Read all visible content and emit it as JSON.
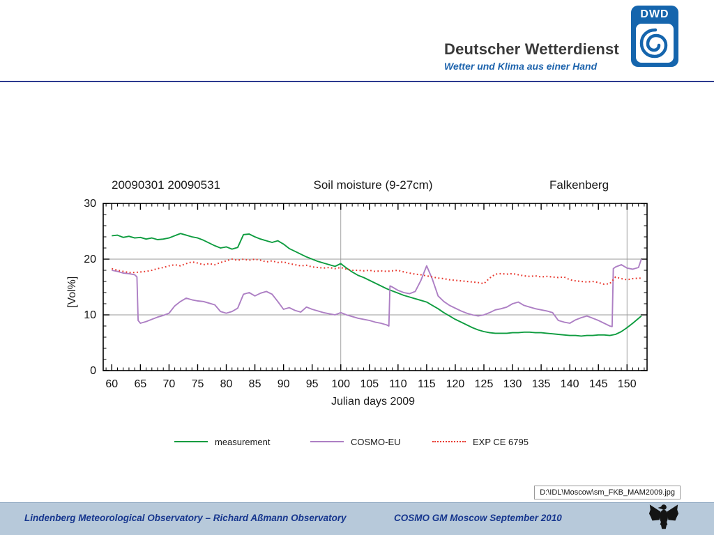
{
  "header": {
    "brand": "Deutscher Wetterdienst",
    "tagline": "Wetter und Klima aus einer Hand",
    "logo_text": "DWD",
    "logo_color": "#1565ad",
    "rule_color": "#2b3a8f"
  },
  "chart_data": {
    "type": "line",
    "title_left": "20090301 20090531",
    "title_center": "Soil moisture (9-27cm)",
    "title_right": "Falkenberg",
    "ylabel": "[Vol%]",
    "xlabel": "Julian days 2009",
    "xlim": [
      58.5,
      153.5
    ],
    "ylim": [
      0,
      30
    ],
    "xticks": [
      60,
      65,
      70,
      75,
      80,
      85,
      90,
      95,
      100,
      105,
      110,
      115,
      120,
      125,
      130,
      135,
      140,
      145,
      150
    ],
    "yticks": [
      0,
      10,
      20,
      30
    ],
    "x_minor_step": 1,
    "y_minor_step": 2,
    "grid": {
      "x": [
        100,
        150
      ],
      "y": [
        10,
        20
      ],
      "color": "#9a9a9a"
    },
    "legend_position": "bottom",
    "series": [
      {
        "name": "measurement",
        "color": "#0e9c3f",
        "style": "solid",
        "points": [
          [
            60,
            24.2
          ],
          [
            61,
            24.3
          ],
          [
            62,
            23.9
          ],
          [
            63,
            24.1
          ],
          [
            64,
            23.8
          ],
          [
            65,
            23.9
          ],
          [
            66,
            23.6
          ],
          [
            67,
            23.8
          ],
          [
            68,
            23.5
          ],
          [
            69,
            23.6
          ],
          [
            70,
            23.8
          ],
          [
            71,
            24.2
          ],
          [
            72,
            24.6
          ],
          [
            73,
            24.3
          ],
          [
            74,
            24.0
          ],
          [
            75,
            23.8
          ],
          [
            76,
            23.4
          ],
          [
            77,
            22.9
          ],
          [
            78,
            22.4
          ],
          [
            79,
            22.0
          ],
          [
            80,
            22.2
          ],
          [
            81,
            21.8
          ],
          [
            82,
            22.1
          ],
          [
            83,
            24.4
          ],
          [
            84,
            24.5
          ],
          [
            85,
            24.0
          ],
          [
            86,
            23.6
          ],
          [
            87,
            23.3
          ],
          [
            88,
            23.0
          ],
          [
            89,
            23.3
          ],
          [
            90,
            22.7
          ],
          [
            91,
            21.9
          ],
          [
            92,
            21.4
          ],
          [
            93,
            20.9
          ],
          [
            94,
            20.4
          ],
          [
            95,
            20.0
          ],
          [
            96,
            19.6
          ],
          [
            97,
            19.3
          ],
          [
            98,
            19.0
          ],
          [
            99,
            18.7
          ],
          [
            100,
            19.2
          ],
          [
            101,
            18.4
          ],
          [
            102,
            17.7
          ],
          [
            103,
            17.1
          ],
          [
            104,
            16.7
          ],
          [
            105,
            16.2
          ],
          [
            106,
            15.7
          ],
          [
            107,
            15.2
          ],
          [
            108,
            14.7
          ],
          [
            109,
            14.3
          ],
          [
            110,
            13.9
          ],
          [
            111,
            13.5
          ],
          [
            112,
            13.2
          ],
          [
            113,
            12.9
          ],
          [
            114,
            12.6
          ],
          [
            115,
            12.3
          ],
          [
            116,
            11.7
          ],
          [
            117,
            11.1
          ],
          [
            118,
            10.4
          ],
          [
            119,
            9.8
          ],
          [
            120,
            9.2
          ],
          [
            121,
            8.7
          ],
          [
            122,
            8.2
          ],
          [
            123,
            7.7
          ],
          [
            124,
            7.3
          ],
          [
            125,
            7.0
          ],
          [
            126,
            6.8
          ],
          [
            127,
            6.7
          ],
          [
            128,
            6.7
          ],
          [
            129,
            6.7
          ],
          [
            130,
            6.8
          ],
          [
            131,
            6.8
          ],
          [
            132,
            6.9
          ],
          [
            133,
            6.9
          ],
          [
            134,
            6.8
          ],
          [
            135,
            6.8
          ],
          [
            136,
            6.7
          ],
          [
            137,
            6.6
          ],
          [
            138,
            6.5
          ],
          [
            139,
            6.4
          ],
          [
            140,
            6.3
          ],
          [
            141,
            6.3
          ],
          [
            142,
            6.2
          ],
          [
            143,
            6.3
          ],
          [
            144,
            6.3
          ],
          [
            145,
            6.4
          ],
          [
            146,
            6.4
          ],
          [
            147,
            6.3
          ],
          [
            148,
            6.5
          ],
          [
            149,
            7.0
          ],
          [
            150,
            7.7
          ],
          [
            151,
            8.5
          ],
          [
            152.5,
            9.8
          ]
        ]
      },
      {
        "name": "COSMO-EU",
        "color": "#ad7fc4",
        "style": "solid",
        "points": [
          [
            60,
            18.0
          ],
          [
            61,
            17.8
          ],
          [
            62,
            17.5
          ],
          [
            63,
            17.4
          ],
          [
            64,
            17.2
          ],
          [
            64.4,
            16.8
          ],
          [
            64.6,
            9.0
          ],
          [
            65,
            8.5
          ],
          [
            66,
            8.8
          ],
          [
            67,
            9.2
          ],
          [
            68,
            9.6
          ],
          [
            69,
            9.9
          ],
          [
            70,
            10.3
          ],
          [
            71,
            11.6
          ],
          [
            72,
            12.4
          ],
          [
            73,
            13.0
          ],
          [
            74,
            12.7
          ],
          [
            75,
            12.5
          ],
          [
            76,
            12.4
          ],
          [
            77,
            12.1
          ],
          [
            78,
            11.8
          ],
          [
            79,
            10.6
          ],
          [
            80,
            10.3
          ],
          [
            81,
            10.6
          ],
          [
            82,
            11.2
          ],
          [
            83,
            13.7
          ],
          [
            84,
            14.0
          ],
          [
            85,
            13.4
          ],
          [
            86,
            13.9
          ],
          [
            87,
            14.2
          ],
          [
            88,
            13.7
          ],
          [
            89,
            12.4
          ],
          [
            90,
            11.0
          ],
          [
            91,
            11.3
          ],
          [
            92,
            10.8
          ],
          [
            93,
            10.5
          ],
          [
            94,
            11.4
          ],
          [
            95,
            11.0
          ],
          [
            96,
            10.7
          ],
          [
            97,
            10.4
          ],
          [
            98,
            10.2
          ],
          [
            99,
            10.0
          ],
          [
            100,
            10.4
          ],
          [
            101,
            10.0
          ],
          [
            102,
            9.7
          ],
          [
            103,
            9.4
          ],
          [
            104,
            9.2
          ],
          [
            105,
            9.0
          ],
          [
            106,
            8.7
          ],
          [
            107,
            8.5
          ],
          [
            108,
            8.2
          ],
          [
            108.4,
            8.0
          ],
          [
            108.6,
            15.2
          ],
          [
            109,
            15.0
          ],
          [
            110,
            14.4
          ],
          [
            111,
            14.0
          ],
          [
            112,
            13.8
          ],
          [
            113,
            14.2
          ],
          [
            114,
            16.2
          ],
          [
            115,
            18.8
          ],
          [
            116,
            16.4
          ],
          [
            117,
            13.4
          ],
          [
            118,
            12.4
          ],
          [
            119,
            11.7
          ],
          [
            120,
            11.2
          ],
          [
            121,
            10.7
          ],
          [
            122,
            10.3
          ],
          [
            123,
            10.0
          ],
          [
            124,
            9.8
          ],
          [
            125,
            10.0
          ],
          [
            126,
            10.4
          ],
          [
            127,
            10.9
          ],
          [
            128,
            11.1
          ],
          [
            129,
            11.4
          ],
          [
            130,
            12.0
          ],
          [
            131,
            12.3
          ],
          [
            132,
            11.7
          ],
          [
            133,
            11.4
          ],
          [
            134,
            11.1
          ],
          [
            135,
            10.9
          ],
          [
            136,
            10.7
          ],
          [
            137,
            10.4
          ],
          [
            138,
            9.0
          ],
          [
            139,
            8.7
          ],
          [
            140,
            8.5
          ],
          [
            141,
            9.1
          ],
          [
            142,
            9.5
          ],
          [
            143,
            9.8
          ],
          [
            144,
            9.4
          ],
          [
            145,
            9.0
          ],
          [
            146,
            8.5
          ],
          [
            147,
            8.0
          ],
          [
            147.4,
            7.9
          ],
          [
            147.6,
            18.3
          ],
          [
            148,
            18.6
          ],
          [
            149,
            19.0
          ],
          [
            150,
            18.4
          ],
          [
            151,
            18.2
          ],
          [
            152,
            18.5
          ],
          [
            152.5,
            20.0
          ]
        ]
      },
      {
        "name": "EXP CE 6795",
        "color": "#e8392f",
        "style": "dotted",
        "points": [
          [
            60,
            18.3
          ],
          [
            61,
            18.0
          ],
          [
            62,
            17.8
          ],
          [
            63,
            17.6
          ],
          [
            64,
            17.6
          ],
          [
            65,
            17.7
          ],
          [
            66,
            17.8
          ],
          [
            67,
            18.0
          ],
          [
            68,
            18.3
          ],
          [
            69,
            18.5
          ],
          [
            70,
            18.8
          ],
          [
            71,
            19.0
          ],
          [
            72,
            18.8
          ],
          [
            73,
            19.2
          ],
          [
            74,
            19.5
          ],
          [
            75,
            19.3
          ],
          [
            76,
            19.0
          ],
          [
            77,
            19.2
          ],
          [
            78,
            19.0
          ],
          [
            79,
            19.4
          ],
          [
            80,
            19.7
          ],
          [
            81,
            20.0
          ],
          [
            82,
            19.8
          ],
          [
            83,
            20.0
          ],
          [
            84,
            19.8
          ],
          [
            85,
            20.0
          ],
          [
            86,
            19.8
          ],
          [
            87,
            19.5
          ],
          [
            88,
            19.7
          ],
          [
            89,
            19.4
          ],
          [
            90,
            19.5
          ],
          [
            91,
            19.2
          ],
          [
            92,
            19.0
          ],
          [
            93,
            18.8
          ],
          [
            94,
            18.9
          ],
          [
            95,
            18.6
          ],
          [
            96,
            18.5
          ],
          [
            97,
            18.4
          ],
          [
            98,
            18.5
          ],
          [
            99,
            18.3
          ],
          [
            100,
            18.5
          ],
          [
            101,
            18.2
          ],
          [
            102,
            18.0
          ],
          [
            103,
            18.0
          ],
          [
            104,
            17.9
          ],
          [
            105,
            18.0
          ],
          [
            106,
            17.8
          ],
          [
            107,
            17.9
          ],
          [
            108,
            17.8
          ],
          [
            109,
            17.9
          ],
          [
            110,
            18.0
          ],
          [
            111,
            17.7
          ],
          [
            112,
            17.5
          ],
          [
            113,
            17.3
          ],
          [
            114,
            17.2
          ],
          [
            115,
            17.0
          ],
          [
            116,
            16.8
          ],
          [
            117,
            16.6
          ],
          [
            118,
            16.5
          ],
          [
            119,
            16.3
          ],
          [
            120,
            16.2
          ],
          [
            121,
            16.1
          ],
          [
            122,
            16.0
          ],
          [
            123,
            15.9
          ],
          [
            124,
            15.8
          ],
          [
            125,
            15.6
          ],
          [
            126,
            16.6
          ],
          [
            127,
            17.3
          ],
          [
            128,
            17.4
          ],
          [
            129,
            17.3
          ],
          [
            130,
            17.4
          ],
          [
            131,
            17.2
          ],
          [
            132,
            17.0
          ],
          [
            133,
            16.9
          ],
          [
            134,
            17.0
          ],
          [
            135,
            16.8
          ],
          [
            136,
            16.9
          ],
          [
            137,
            16.8
          ],
          [
            138,
            16.7
          ],
          [
            139,
            16.8
          ],
          [
            140,
            16.3
          ],
          [
            141,
            16.1
          ],
          [
            142,
            16.0
          ],
          [
            143,
            15.9
          ],
          [
            144,
            16.0
          ],
          [
            145,
            15.8
          ],
          [
            146,
            15.5
          ],
          [
            147,
            15.6
          ],
          [
            148,
            16.8
          ],
          [
            149,
            16.5
          ],
          [
            150,
            16.3
          ],
          [
            151,
            16.5
          ],
          [
            152.5,
            16.6
          ]
        ]
      }
    ]
  },
  "caption": {
    "file_label": "D:\\IDL\\Moscow\\sm_FKB_MAM2009.jpg"
  },
  "footer": {
    "left": "Lindenberg Meteorological Observatory – Richard Aßmann Observatory",
    "right": "COSMO GM Moscow September 2010",
    "bg_color": "#b7c9da",
    "text_color": "#16368e"
  }
}
